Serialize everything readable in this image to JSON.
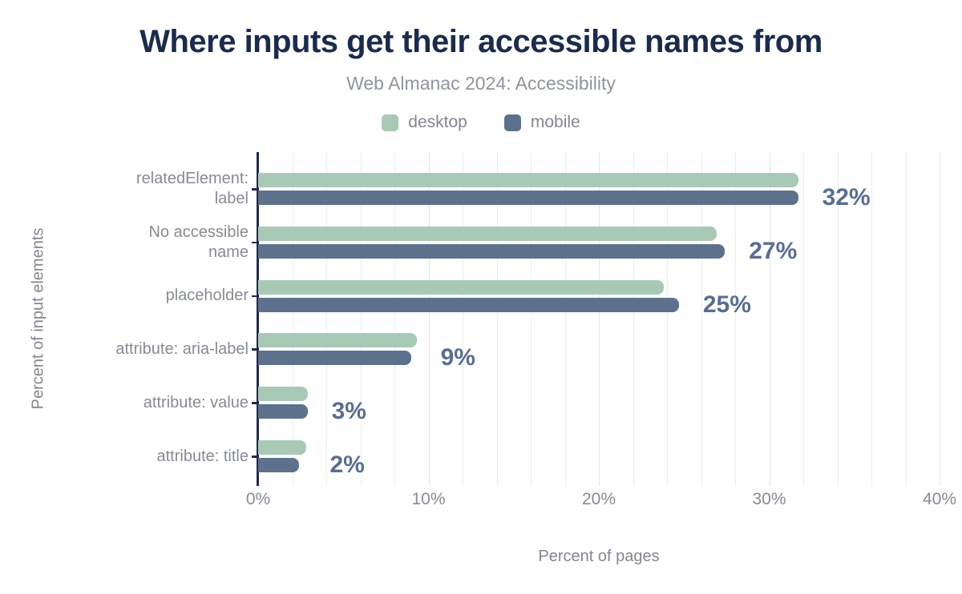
{
  "title": "Where inputs get their accessible names from",
  "subtitle": "Web Almanac 2024: Accessibility",
  "legend": {
    "items": [
      {
        "label": "desktop",
        "color": "#a8c9b6"
      },
      {
        "label": "mobile",
        "color": "#5e718c"
      }
    ]
  },
  "axes": {
    "x_title": "Percent of pages",
    "y_title": "Percent of input elements",
    "x_tick_labels": [
      "0%",
      "10%",
      "20%",
      "30%",
      "40%"
    ]
  },
  "colors": {
    "title_text": "#1b2b4d",
    "muted_text": "#878b93",
    "axis_line": "#1e2b4a",
    "gridline": "#ededf0",
    "desktop_bar": "#a8c9b6",
    "mobile_bar": "#5e718c",
    "value_label": "#5a6d90"
  },
  "chart_data": {
    "type": "bar",
    "orientation": "horizontal",
    "title": "Where inputs get their accessible names from",
    "subtitle": "Web Almanac 2024: Accessibility",
    "xlabel": "Percent of pages",
    "ylabel": "Percent of input elements",
    "xlim": [
      0,
      40
    ],
    "x_ticks_pct": [
      0,
      10,
      20,
      30,
      40
    ],
    "grid_step_pct": 2,
    "legend_position": "top",
    "categories": [
      "relatedElement: label",
      "No accessible name",
      "placeholder",
      "attribute: aria-label",
      "attribute: value",
      "attribute: title"
    ],
    "categories_wrapped": [
      [
        "relatedElement:",
        "label"
      ],
      [
        "No accessible",
        "name"
      ],
      [
        "placeholder"
      ],
      [
        "attribute: aria-label"
      ],
      [
        "attribute: value"
      ],
      [
        "attribute: title"
      ]
    ],
    "series": [
      {
        "name": "desktop",
        "color": "#a8c9b6",
        "values": [
          31.7,
          26.9,
          23.8,
          9.3,
          2.9,
          2.8
        ]
      },
      {
        "name": "mobile",
        "color": "#5e718c",
        "values": [
          31.7,
          27.4,
          24.7,
          9.0,
          2.9,
          2.4
        ]
      }
    ],
    "data_labels": [
      "32%",
      "27%",
      "25%",
      "9%",
      "3%",
      "2%"
    ]
  }
}
